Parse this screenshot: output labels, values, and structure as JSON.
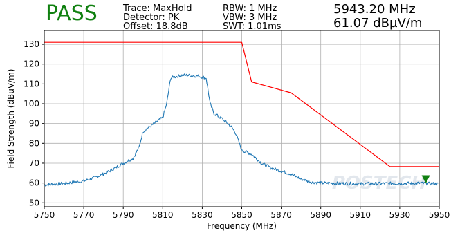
{
  "header": {
    "verdict": "PASS",
    "verdict_color": "#108010",
    "trace": "Trace: MaxHold",
    "detector": "Detector: PK",
    "offset": "Offset: 18.8dB",
    "rbw": "RBW: 1 MHz",
    "vbw": "VBW: 3 MHz",
    "swt": "SWT: 1.01ms",
    "marker_freq": "5943.20 MHz",
    "marker_level": "61.07 dBµV/m"
  },
  "watermark": "POSTECH",
  "chart_data": {
    "type": "line",
    "xlabel": "Frequency (MHz)",
    "ylabel": "Field Strength (dBuV/m)",
    "xlim": [
      5750,
      5950
    ],
    "ylim": [
      48,
      137
    ],
    "x_ticks": [
      5750,
      5770,
      5790,
      5810,
      5830,
      5850,
      5870,
      5890,
      5910,
      5930,
      5950
    ],
    "y_ticks": [
      50,
      60,
      70,
      80,
      90,
      100,
      110,
      120,
      130
    ],
    "grid": true,
    "series": [
      {
        "color": "#1f77b4",
        "points": [
          [
            5750,
            59.0
          ],
          [
            5760,
            59.8
          ],
          [
            5770,
            61.0
          ],
          [
            5775,
            62.5
          ],
          [
            5780,
            64.5
          ],
          [
            5785,
            67.0
          ],
          [
            5790,
            70.0
          ],
          [
            5795,
            72.5
          ],
          [
            5798,
            78.0
          ],
          [
            5800,
            86.0
          ],
          [
            5805,
            89.5
          ],
          [
            5810,
            93.0
          ],
          [
            5812,
            100.0
          ],
          [
            5814,
            113.0
          ],
          [
            5820,
            114.5
          ],
          [
            5828,
            114.0
          ],
          [
            5832,
            113.0
          ],
          [
            5834,
            100.0
          ],
          [
            5836,
            95.0
          ],
          [
            5840,
            92.5
          ],
          [
            5845,
            88.0
          ],
          [
            5847,
            85.0
          ],
          [
            5850,
            76.5
          ],
          [
            5855,
            74.5
          ],
          [
            5860,
            70.0
          ],
          [
            5865,
            67.5
          ],
          [
            5870,
            66.0
          ],
          [
            5875,
            64.5
          ],
          [
            5880,
            62.0
          ],
          [
            5885,
            60.5
          ],
          [
            5890,
            60.0
          ],
          [
            5900,
            59.8
          ],
          [
            5910,
            59.6
          ],
          [
            5920,
            59.7
          ],
          [
            5930,
            59.8
          ],
          [
            5940,
            59.9
          ],
          [
            5950,
            59.5
          ]
        ]
      },
      {
        "color": "#ff0000",
        "points": [
          [
            5750,
            131
          ],
          [
            5850,
            131
          ],
          [
            5855,
            111
          ],
          [
            5875,
            105.5
          ],
          [
            5925,
            68.3
          ],
          [
            5950,
            68.3
          ]
        ]
      }
    ],
    "marker": {
      "x": 5943.2,
      "y": 61.07,
      "color": "#108010"
    }
  }
}
